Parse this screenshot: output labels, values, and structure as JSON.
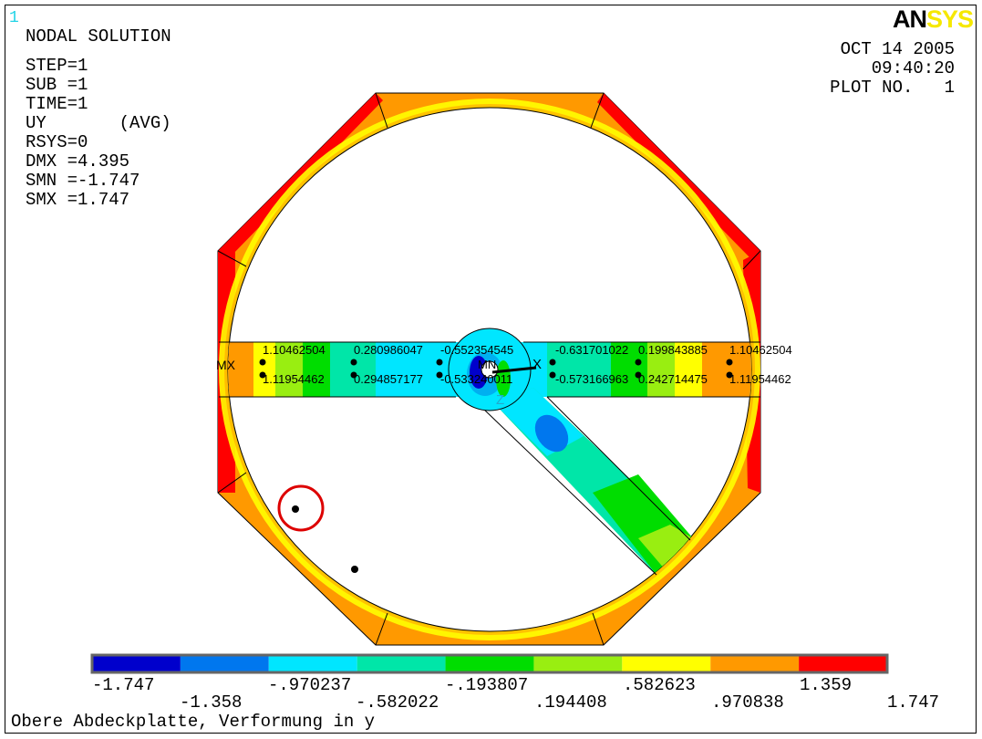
{
  "window_number": "1",
  "header": {
    "title": "NODAL SOLUTION",
    "info_lines": [
      "STEP=1",
      "SUB =1",
      "TIME=1",
      "UY       (AVG)",
      "RSYS=0",
      "DMX =4.395",
      "SMN =-1.747",
      "SMX =1.747"
    ]
  },
  "logo": {
    "part_a": "AN",
    "part_b": "SYS"
  },
  "plot_meta": {
    "date": "OCT 14 2005",
    "time": "09:40:20",
    "plot_no": "PLOT NO.   1"
  },
  "markers": {
    "mx": "MX",
    "mn": "MN",
    "x_axis": "X",
    "z_axis": "Z"
  },
  "node_labels": {
    "top": [
      "1.10462504",
      "0.280986047",
      "-0.552354545",
      "-0.631701022",
      "0.199843885",
      "1.10462504"
    ],
    "bottom": [
      "1.11954462",
      "0.294857177",
      "-0.533240011",
      "-0.573166963",
      "0.242714475",
      "1.11954462"
    ]
  },
  "legend": {
    "colors": [
      "#0000cc",
      "#0077ee",
      "#00e6ff",
      "#00e6a8",
      "#00dd00",
      "#99ee11",
      "#ffff00",
      "#ff9900",
      "#ff0000"
    ],
    "ticks": [
      "-1.747",
      "-1.358",
      "-.970237",
      "-.582022",
      "-.193807",
      ".194408",
      ".582623",
      ".970838",
      "1.359",
      "1.747"
    ]
  },
  "caption": "Obere Abdeckplatte, Verformung in y"
}
